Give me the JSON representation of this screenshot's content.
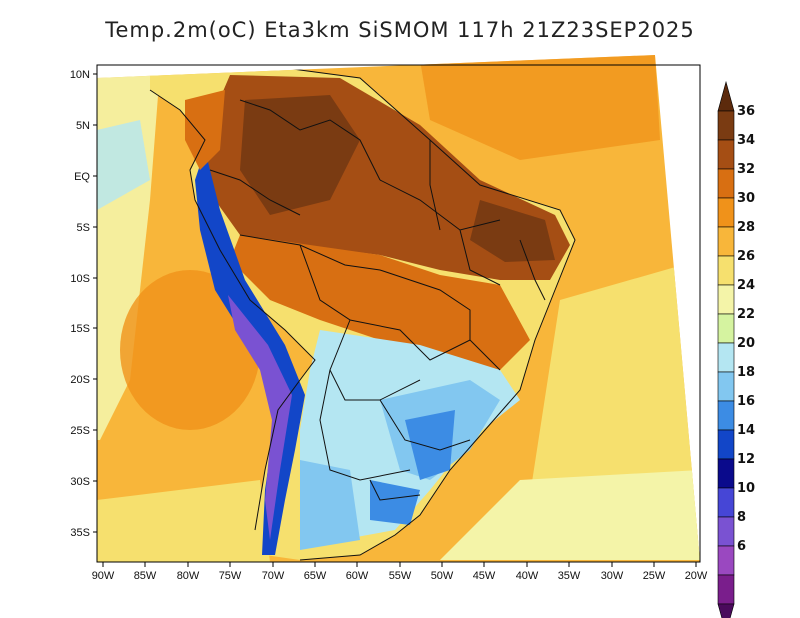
{
  "title": "Temp.2m(oC) Eta3km SiSMOM 117h 21Z23SEP2025",
  "map": {
    "lat_ticks": [
      "10N",
      "5N",
      "EQ",
      "5S",
      "10S",
      "15S",
      "20S",
      "25S",
      "30S",
      "35S"
    ],
    "lon_ticks": [
      "90W",
      "85W",
      "80W",
      "75W",
      "70W",
      "65W",
      "60W",
      "55W",
      "50W",
      "45W",
      "40W",
      "35W",
      "30W",
      "25W",
      "20W"
    ]
  },
  "colorbar": {
    "labels": [
      "36",
      "34",
      "32",
      "30",
      "28",
      "26",
      "24",
      "22",
      "20",
      "18",
      "16",
      "14",
      "12",
      "10",
      "8",
      "6"
    ],
    "colors": [
      "#5c2a0c",
      "#7a3b12",
      "#a54e14",
      "#d86f12",
      "#f0921a",
      "#f8b63a",
      "#f6e06e",
      "#f4f4a8",
      "#d5f3a0",
      "#b4e6f2",
      "#82c7f0",
      "#3c8ce4",
      "#1246c8",
      "#0a0a8c",
      "#4646d6",
      "#7a52d2",
      "#9a48c0",
      "#7a1e8c",
      "#4a0a5c"
    ]
  }
}
